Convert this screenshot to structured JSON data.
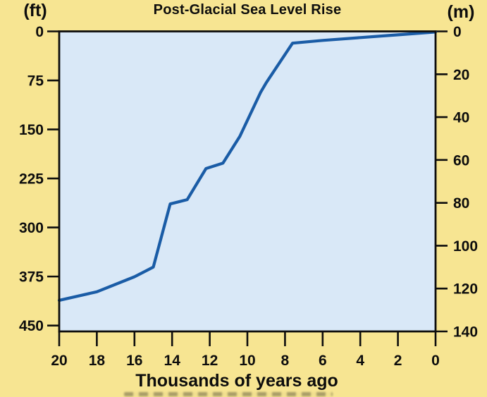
{
  "figure": {
    "title": "Post-Glacial Sea Level Rise",
    "x_axis_title": "Thousands of years ago",
    "left_axis_unit": "(ft)",
    "right_axis_unit": "(m)"
  },
  "colors": {
    "background": "#F7E592",
    "plot_background": "#D9E8F7",
    "line": "#1A5CA6",
    "axis": "#0d0d0d"
  },
  "chart_data": {
    "type": "line",
    "title": "Post-Glacial Sea Level Rise",
    "xlabel": "Thousands of years ago",
    "x_axis": {
      "ticks": [
        20,
        18,
        16,
        14,
        12,
        10,
        8,
        6,
        4,
        2,
        0
      ],
      "range": [
        20,
        0
      ],
      "orientation": "reversed, 20 thousand years ago at left, present (0) at right"
    },
    "y_axis_left": {
      "unit": "(ft)",
      "ticks": [
        0,
        75,
        150,
        225,
        300,
        375,
        450
      ],
      "range": [
        0,
        459
      ],
      "orientation": "0 at top, depth below present sea level increases downward"
    },
    "y_axis_right": {
      "unit": "(m)",
      "ticks": [
        0,
        20,
        40,
        60,
        80,
        100,
        120,
        140
      ],
      "range": [
        0,
        140
      ],
      "orientation": "0 at top, increases downward"
    },
    "grid": false,
    "legend": false,
    "series": [
      {
        "name": "Sea level below present (meters) vs thousands of years ago",
        "points_ka_m": [
          [
            20,
            125.5
          ],
          [
            18,
            121.5
          ],
          [
            16,
            114.5
          ],
          [
            15,
            110
          ],
          [
            14.1,
            80.5
          ],
          [
            13.2,
            78.5
          ],
          [
            12.2,
            64
          ],
          [
            11.3,
            61.5
          ],
          [
            10.4,
            49
          ],
          [
            9.3,
            28.5
          ],
          [
            9.0,
            24
          ],
          [
            7.6,
            5.5
          ],
          [
            6,
            4.2
          ],
          [
            4,
            2.9
          ],
          [
            2,
            1.6
          ],
          [
            0,
            0.3
          ]
        ]
      }
    ]
  },
  "artifacts": {
    "bottom_edge": "partially cropped illegible dark text strip below the x-axis title"
  }
}
